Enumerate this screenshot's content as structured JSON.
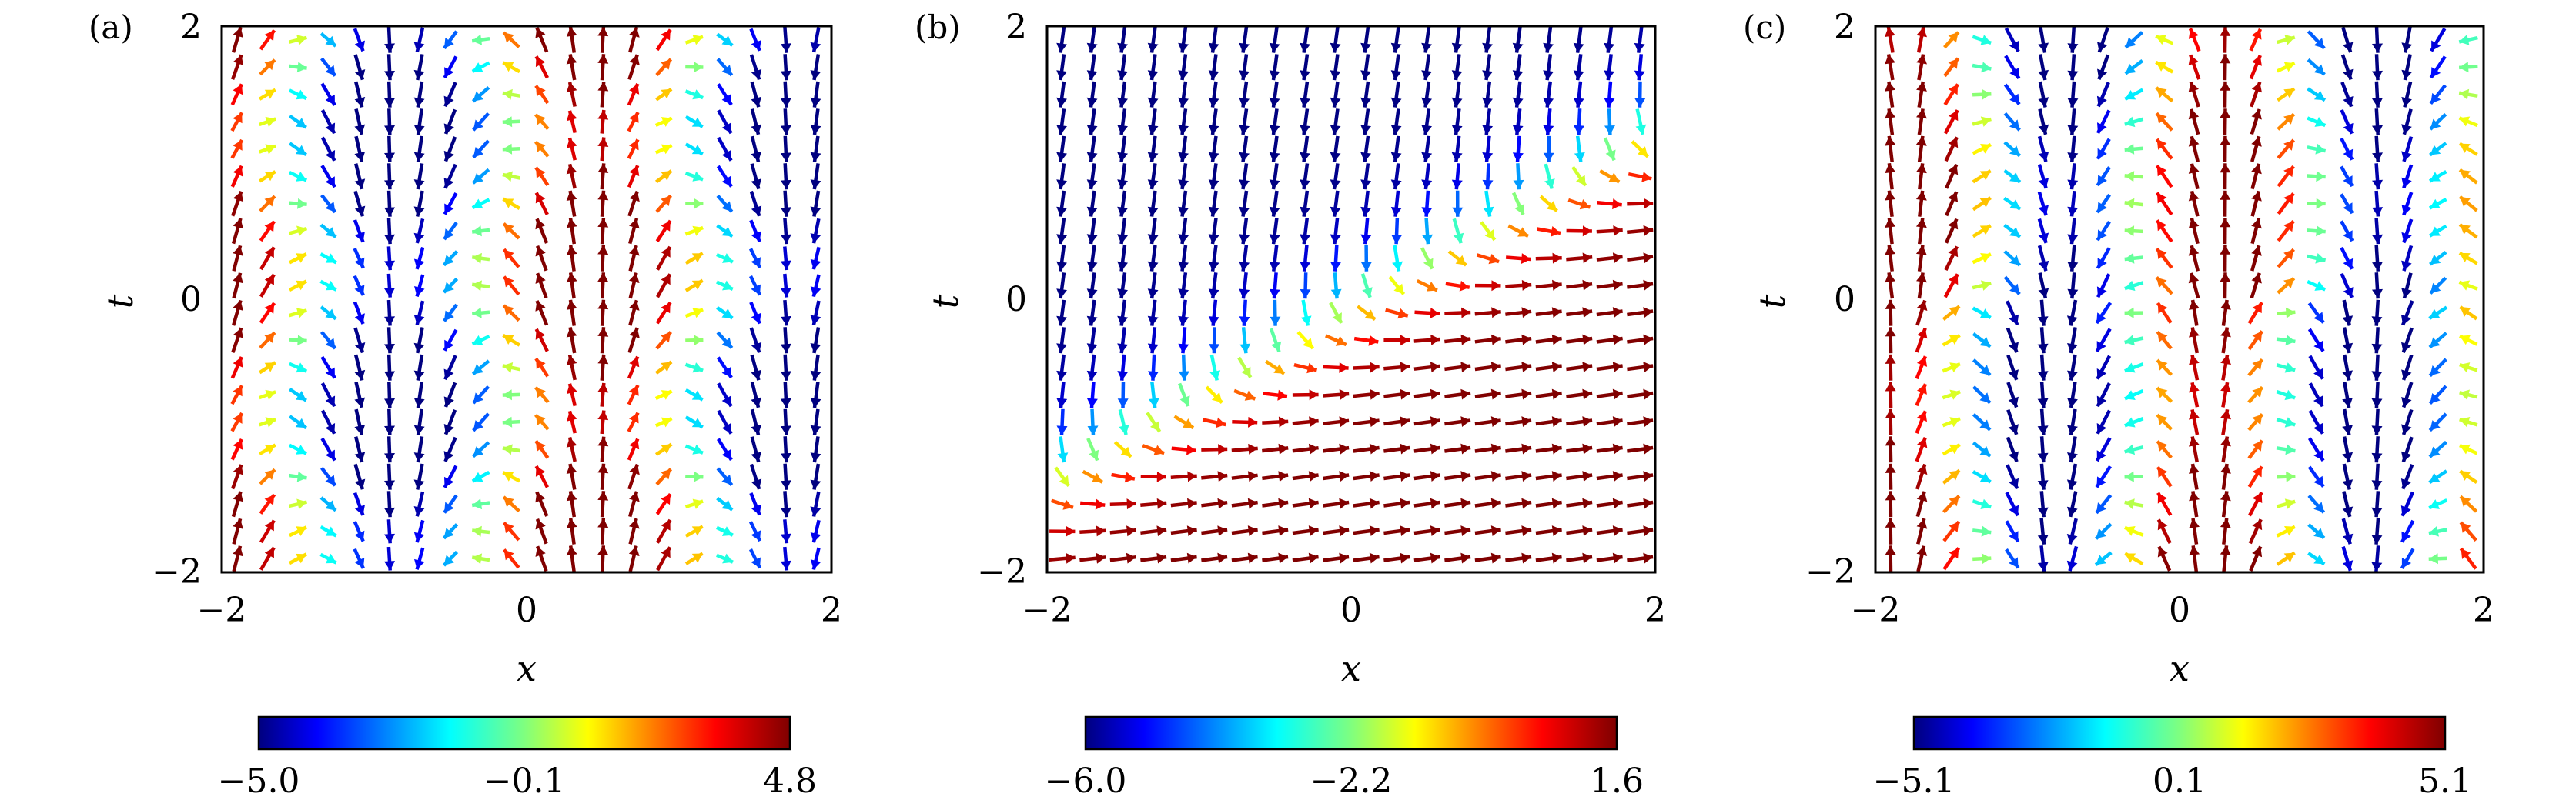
{
  "chart_data": [
    {
      "type": "quiver",
      "panel_label": "(a)",
      "xlabel": "x",
      "ylabel": "t",
      "xlim": [
        -2,
        2
      ],
      "ylim": [
        -2,
        2
      ],
      "xticks": [
        "−2",
        "0",
        "2"
      ],
      "yticks": [
        "−2",
        "0",
        "2"
      ],
      "colorbar": {
        "min": -5.0,
        "max": 4.8,
        "tick_labels": [
          "−5.0",
          "−0.1",
          "4.8"
        ]
      },
      "field": "a"
    },
    {
      "type": "quiver",
      "panel_label": "(b)",
      "xlabel": "x",
      "ylabel": "t",
      "xlim": [
        -2,
        2
      ],
      "ylim": [
        -2,
        2
      ],
      "xticks": [
        "−2",
        "0",
        "2"
      ],
      "yticks": [
        "−2",
        "0",
        "2"
      ],
      "colorbar": {
        "min": -6.0,
        "max": 1.6,
        "tick_labels": [
          "−6.0",
          "−2.2",
          "1.6"
        ]
      },
      "field": "b"
    },
    {
      "type": "quiver",
      "panel_label": "(c)",
      "xlabel": "x",
      "ylabel": "t",
      "xlim": [
        -2,
        2
      ],
      "ylim": [
        -2,
        2
      ],
      "xticks": [
        "−2",
        "0",
        "2"
      ],
      "yticks": [
        "−2",
        "0",
        "2"
      ],
      "colorbar": {
        "min": -5.1,
        "max": 5.1,
        "tick_labels": [
          "−5.1",
          "0.1",
          "5.1"
        ]
      },
      "field": "c"
    }
  ]
}
